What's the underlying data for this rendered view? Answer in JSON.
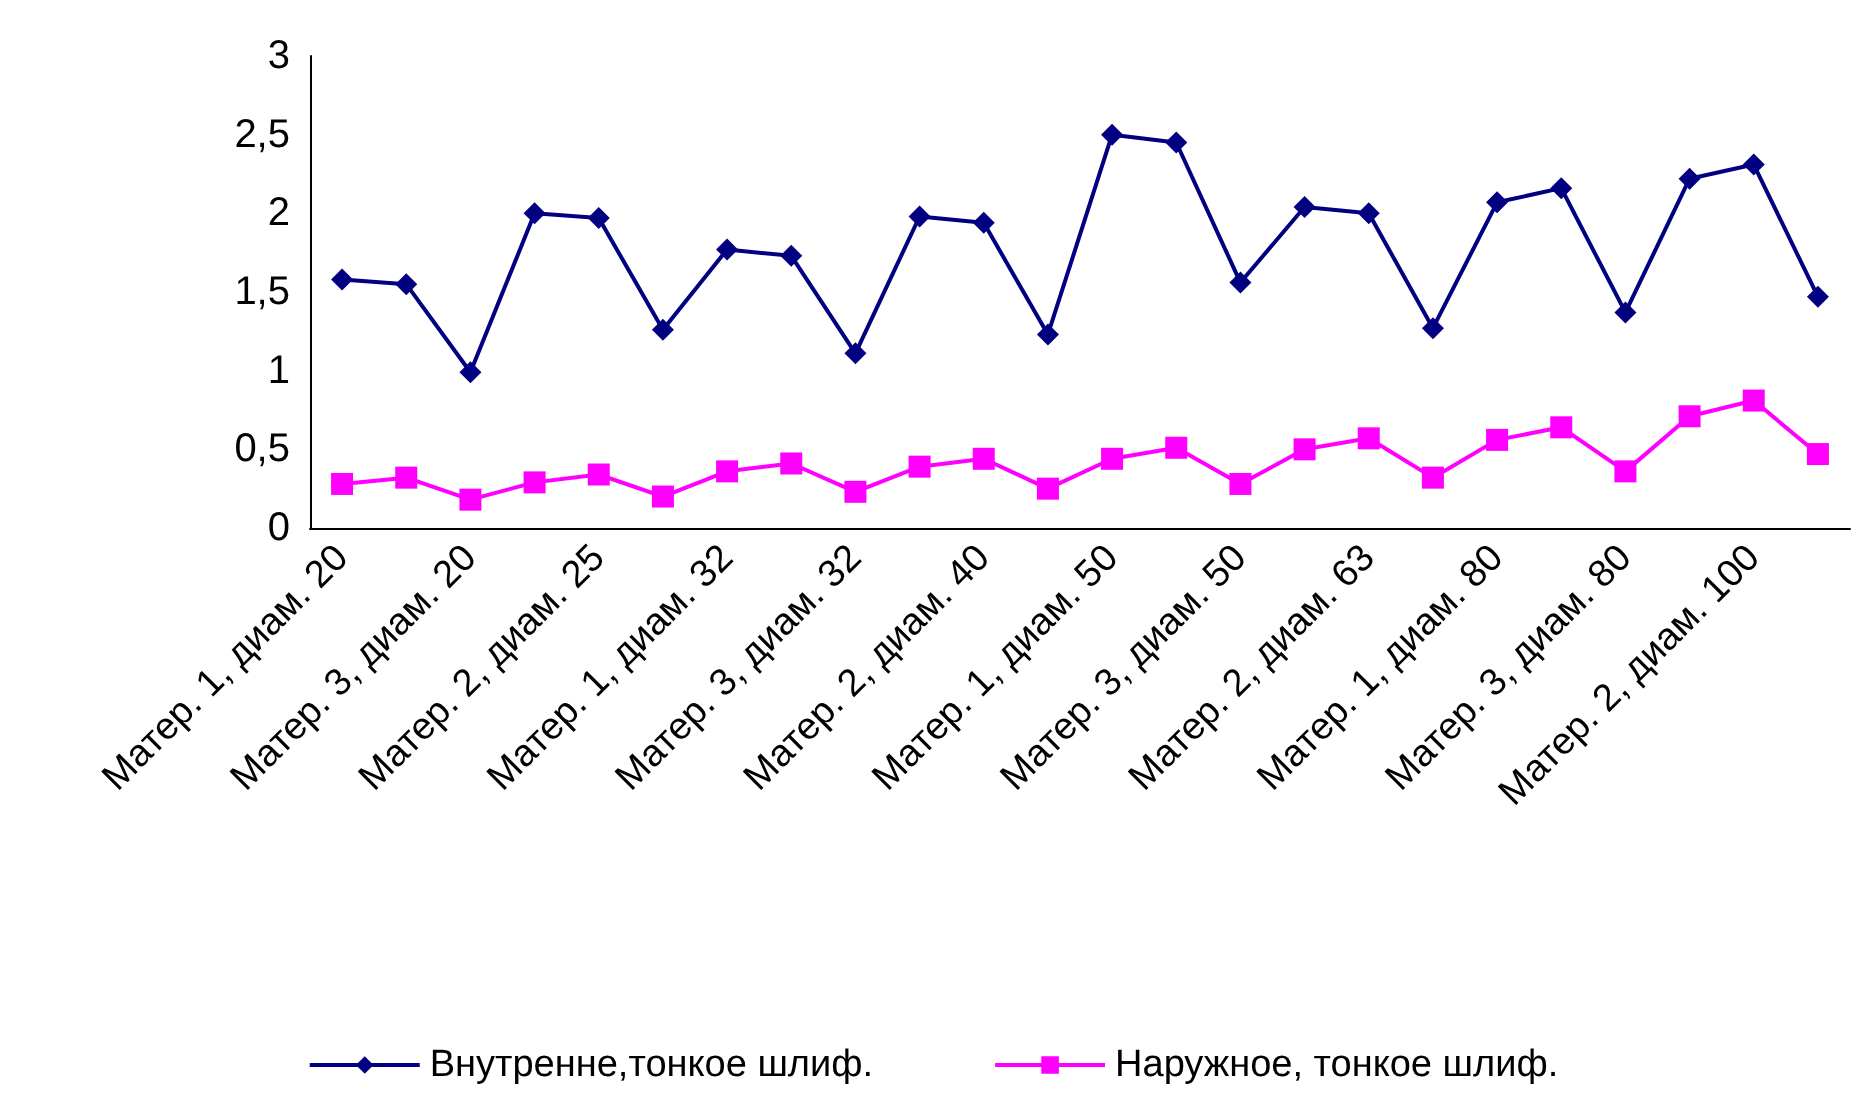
{
  "chart_data": {
    "type": "line",
    "categories": [
      "Матер. 1, диам. 20",
      null,
      "Матер. 3, диам. 20",
      null,
      "Матер. 2, диам. 25",
      null,
      "Матер. 1, диам. 32",
      null,
      "Матер. 3, диам. 32",
      null,
      "Матер. 2, диам. 40",
      null,
      "Матер. 1, диам. 50",
      null,
      "Матер. 3, диам. 50",
      null,
      "Матер. 2, диам. 63",
      null,
      "Матер. 1, диам. 80",
      null,
      "Матер. 3, диам. 80",
      null,
      "Матер. 2, диам. 100",
      null
    ],
    "series": [
      {
        "name": "Внутренне,тонкое шлиф.",
        "color": "#000080",
        "marker": "diamond",
        "values": [
          1.58,
          1.55,
          0.99,
          2.0,
          1.97,
          1.26,
          1.77,
          1.73,
          1.11,
          1.98,
          1.94,
          1.23,
          2.5,
          2.45,
          1.56,
          2.04,
          2.0,
          1.27,
          2.07,
          2.16,
          1.37,
          2.22,
          2.31,
          1.47
        ]
      },
      {
        "name": "Наружное, тонкое шлиф.",
        "color": "#ff00ff",
        "marker": "square",
        "values": [
          0.28,
          0.32,
          0.18,
          0.29,
          0.34,
          0.2,
          0.36,
          0.41,
          0.23,
          0.39,
          0.44,
          0.25,
          0.44,
          0.51,
          0.28,
          0.5,
          0.57,
          0.32,
          0.56,
          0.64,
          0.36,
          0.71,
          0.81,
          0.47
        ]
      }
    ],
    "ylim": [
      0,
      3
    ],
    "yticks": [
      0,
      {
        "value": 0.5,
        "label": "0,5"
      },
      1,
      {
        "value": 1.5,
        "label": "1,5"
      },
      2,
      {
        "value": 2.5,
        "label": "2,5"
      },
      3
    ],
    "grid": false,
    "legend": "bottom"
  }
}
